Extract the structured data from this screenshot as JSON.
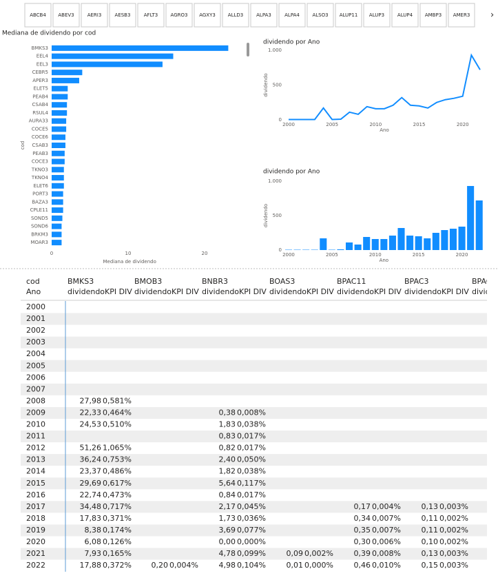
{
  "slicer": {
    "items": [
      "ABCB4",
      "ABEV3",
      "AERI3",
      "AESB3",
      "AFLT3",
      "AGRO3",
      "AGXY3",
      "ALLD3",
      "ALPA3",
      "ALPA4",
      "ALSO3",
      "ALUP11",
      "ALUP3",
      "ALUP4",
      "AMBP3",
      "AMER3"
    ]
  },
  "chart_data": [
    {
      "type": "bar",
      "orientation": "horizontal",
      "title": "Mediana de dividendo por cod",
      "xlabel": "Mediana de dividendo",
      "ylabel": "cod",
      "categories": [
        "BMKS3",
        "EEL4",
        "EEL3",
        "CEBR5",
        "APER3",
        "ELET5",
        "PEAB4",
        "CSAB4",
        "RSUL4",
        "AURA33",
        "COCE5",
        "COCE6",
        "CSAB3",
        "PEAB3",
        "COCE3",
        "TKNO3",
        "TKNO4",
        "ELET6",
        "PORT3",
        "BAZA3",
        "CPLE11",
        "SOND5",
        "SOND6",
        "BRKM3",
        "MOAR3"
      ],
      "values": [
        23.1,
        15.9,
        14.5,
        4.0,
        3.6,
        2.1,
        2.1,
        2.0,
        2.0,
        1.9,
        1.9,
        1.8,
        1.8,
        1.7,
        1.7,
        1.6,
        1.6,
        1.6,
        1.5,
        1.5,
        1.5,
        1.4,
        1.3,
        1.3,
        1.3
      ],
      "color": "#118dff",
      "xlim": [
        0,
        24
      ],
      "xticks": [
        0,
        10,
        20
      ]
    },
    {
      "type": "line",
      "title": "dividendo por Ano",
      "xlabel": "Ano",
      "ylabel": "dividendo",
      "x": [
        2000,
        2001,
        2002,
        2003,
        2004,
        2005,
        2006,
        2007,
        2008,
        2009,
        2010,
        2011,
        2012,
        2013,
        2014,
        2015,
        2016,
        2017,
        2018,
        2019,
        2020,
        2021,
        2022
      ],
      "values": [
        5,
        5,
        5,
        5,
        170,
        5,
        10,
        110,
        80,
        190,
        160,
        160,
        210,
        320,
        210,
        200,
        170,
        250,
        290,
        310,
        340,
        930,
        720
      ],
      "color": "#118dff",
      "xlim": [
        2000,
        2022
      ],
      "xticks": [
        2000,
        2005,
        2010,
        2015,
        2020
      ],
      "ylim": [
        0,
        1000
      ],
      "yticks": [
        0,
        500,
        {
          "value": 1000,
          "label": "1.000"
        }
      ]
    },
    {
      "type": "bar",
      "orientation": "vertical",
      "title": "dividendo por Ano",
      "xlabel": "Ano",
      "ylabel": "dividendo",
      "x": [
        2000,
        2001,
        2002,
        2003,
        2004,
        2005,
        2006,
        2007,
        2008,
        2009,
        2010,
        2011,
        2012,
        2013,
        2014,
        2015,
        2016,
        2017,
        2018,
        2019,
        2020,
        2021,
        2022
      ],
      "values": [
        5,
        5,
        5,
        5,
        170,
        5,
        10,
        110,
        80,
        190,
        160,
        160,
        210,
        320,
        210,
        200,
        170,
        250,
        290,
        310,
        340,
        930,
        720
      ],
      "color": "#118dff",
      "xlim": [
        1999.5,
        2022.5
      ],
      "xticks": [
        2000,
        2005,
        2010,
        2015,
        2020
      ],
      "ylim": [
        0,
        1000
      ],
      "yticks": [
        0,
        500,
        {
          "value": 1000,
          "label": "1.000"
        }
      ]
    }
  ],
  "table": {
    "row_header": "cod",
    "col_header": "Ano",
    "measures": [
      "dividendo",
      "KPI DIV"
    ],
    "columns": [
      "BMKS3",
      "BMOB3",
      "BNBR3",
      "BOAS3",
      "BPAC11",
      "BPAC3",
      "BPAC"
    ],
    "rows": [
      {
        "ano": "2000",
        "cells": [
          null,
          null,
          null,
          null,
          null,
          null,
          null,
          null,
          null,
          null,
          null,
          null
        ]
      },
      {
        "ano": "2001",
        "cells": [
          null,
          null,
          null,
          null,
          null,
          null,
          null,
          null,
          null,
          null,
          null,
          null
        ]
      },
      {
        "ano": "2002",
        "cells": [
          null,
          null,
          null,
          null,
          null,
          null,
          null,
          null,
          null,
          null,
          null,
          null
        ]
      },
      {
        "ano": "2003",
        "cells": [
          null,
          null,
          null,
          null,
          null,
          null,
          null,
          null,
          null,
          null,
          null,
          null
        ]
      },
      {
        "ano": "2004",
        "cells": [
          null,
          null,
          null,
          null,
          null,
          null,
          null,
          null,
          null,
          null,
          null,
          null
        ]
      },
      {
        "ano": "2005",
        "cells": [
          null,
          null,
          null,
          null,
          null,
          null,
          null,
          null,
          null,
          null,
          null,
          null
        ]
      },
      {
        "ano": "2006",
        "cells": [
          null,
          null,
          null,
          null,
          null,
          null,
          null,
          null,
          null,
          null,
          null,
          null
        ]
      },
      {
        "ano": "2007",
        "cells": [
          null,
          null,
          null,
          null,
          null,
          null,
          null,
          null,
          null,
          null,
          null,
          null
        ]
      },
      {
        "ano": "2008",
        "cells": [
          "27,98",
          "0,581%",
          null,
          null,
          null,
          null,
          null,
          null,
          null,
          null,
          null,
          null
        ]
      },
      {
        "ano": "2009",
        "cells": [
          "22,33",
          "0,464%",
          null,
          null,
          "0,38",
          "0,008%",
          null,
          null,
          null,
          null,
          null,
          null
        ]
      },
      {
        "ano": "2010",
        "cells": [
          "24,53",
          "0,510%",
          null,
          null,
          "1,83",
          "0,038%",
          null,
          null,
          null,
          null,
          null,
          null
        ]
      },
      {
        "ano": "2011",
        "cells": [
          null,
          null,
          null,
          null,
          "0,83",
          "0,017%",
          null,
          null,
          null,
          null,
          null,
          null
        ]
      },
      {
        "ano": "2012",
        "cells": [
          "51,26",
          "1,065%",
          null,
          null,
          "0,82",
          "0,017%",
          null,
          null,
          null,
          null,
          null,
          null
        ]
      },
      {
        "ano": "2013",
        "cells": [
          "36,24",
          "0,753%",
          null,
          null,
          "2,40",
          "0,050%",
          null,
          null,
          null,
          null,
          null,
          null
        ]
      },
      {
        "ano": "2014",
        "cells": [
          "23,37",
          "0,486%",
          null,
          null,
          "1,82",
          "0,038%",
          null,
          null,
          null,
          null,
          null,
          null
        ]
      },
      {
        "ano": "2015",
        "cells": [
          "29,69",
          "0,617%",
          null,
          null,
          "5,64",
          "0,117%",
          null,
          null,
          null,
          null,
          null,
          null
        ]
      },
      {
        "ano": "2016",
        "cells": [
          "22,74",
          "0,473%",
          null,
          null,
          "0,84",
          "0,017%",
          null,
          null,
          null,
          null,
          null,
          null
        ]
      },
      {
        "ano": "2017",
        "cells": [
          "34,48",
          "0,717%",
          null,
          null,
          "2,17",
          "0,045%",
          null,
          null,
          "0,17",
          "0,004%",
          "0,13",
          "0,003%"
        ]
      },
      {
        "ano": "2018",
        "cells": [
          "17,83",
          "0,371%",
          null,
          null,
          "1,73",
          "0,036%",
          null,
          null,
          "0,34",
          "0,007%",
          "0,11",
          "0,002%"
        ]
      },
      {
        "ano": "2019",
        "cells": [
          "8,38",
          "0,174%",
          null,
          null,
          "3,69",
          "0,077%",
          null,
          null,
          "0,35",
          "0,007%",
          "0,11",
          "0,002%"
        ]
      },
      {
        "ano": "2020",
        "cells": [
          "6,08",
          "0,126%",
          null,
          null,
          "0,00",
          "0,000%",
          null,
          null,
          "0,30",
          "0,006%",
          "0,10",
          "0,002%"
        ]
      },
      {
        "ano": "2021",
        "cells": [
          "7,93",
          "0,165%",
          null,
          null,
          "4,78",
          "0,099%",
          "0,09",
          "0,002%",
          "0,39",
          "0,008%",
          "0,13",
          "0,003%"
        ]
      },
      {
        "ano": "2022",
        "cells": [
          "17,88",
          "0,372%",
          "0,20",
          "0,004%",
          "4,98",
          "0,104%",
          "0,01",
          "0,000%",
          "0,46",
          "0,010%",
          "0,15",
          "0,003%"
        ]
      }
    ]
  }
}
